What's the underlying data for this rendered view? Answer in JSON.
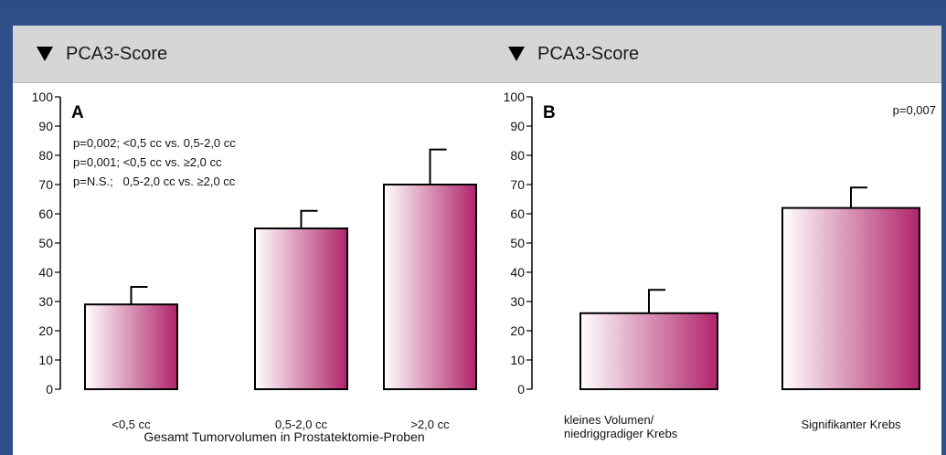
{
  "panel_a": {
    "header": "PCA3-Score",
    "panel_label": "A",
    "annotations": [
      "p=0,002; <0,5 cc vs. 0,5-2,0 cc",
      "p=0,001; <0,5 cc vs. ≥2,0 cc",
      "p=N.S.;   0,5-2,0 cc vs. ≥2,0 cc"
    ]
  },
  "panel_b": {
    "header": "PCA3-Score",
    "panel_label": "B",
    "pvalue": "p=0,007"
  },
  "colors": {
    "bar_light": "#ffffff",
    "bar_dark": "#b0246a",
    "header_bg": "#d6d6d6",
    "frame": "#2f4f8a"
  },
  "chart_data": [
    {
      "type": "bar",
      "title": "",
      "xlabel": "Gesamt Tumorvolumen in Prostatektomie-Proben",
      "ylabel": "",
      "ylim": [
        0,
        100
      ],
      "yticks": [
        0,
        10,
        20,
        30,
        40,
        50,
        60,
        70,
        80,
        90,
        100
      ],
      "categories": [
        "<0,5 cc",
        "0,5-2,0 cc",
        ">2,0 cc"
      ],
      "values": [
        29,
        55,
        70
      ],
      "error_upper": [
        35,
        61,
        82
      ]
    },
    {
      "type": "bar",
      "title": "",
      "xlabel": "",
      "ylabel": "",
      "ylim": [
        0,
        100
      ],
      "yticks": [
        0,
        10,
        20,
        30,
        40,
        50,
        60,
        70,
        80,
        90,
        100
      ],
      "categories": [
        [
          "kleines Volumen/",
          "niedriggradiger Krebs"
        ],
        [
          "Signifikanter Krebs"
        ]
      ],
      "values": [
        26,
        62
      ],
      "error_upper": [
        34,
        69
      ]
    }
  ]
}
